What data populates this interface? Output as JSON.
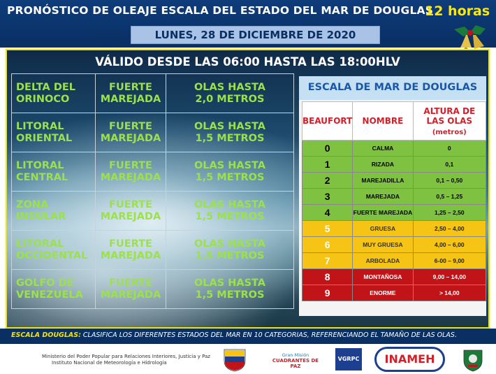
{
  "header": {
    "title": "PRONÓSTICO DE OLEAJE ESCALA DEL ESTADO DEL MAR DE DOUGLAS",
    "hours": "12 horas",
    "date": "LUNES, 28 DE DICIEMBRE DE 2020"
  },
  "validity": "VÁLIDO DESDE LAS 06:00 HASTA LAS 18:00HLV",
  "forecast": [
    {
      "zone_l1": "DELTA DEL",
      "zone_l2": "ORINOCO",
      "cond_l1": "FUERTE",
      "cond_l2": "MAREJADA",
      "waves_l1": "OLAS HASTA",
      "waves_l2": "2,0 METROS"
    },
    {
      "zone_l1": "LITORAL",
      "zone_l2": "ORIENTAL",
      "cond_l1": "FUERTE",
      "cond_l2": "MAREJADA",
      "waves_l1": "OLAS HASTA",
      "waves_l2": "1,5 METROS"
    },
    {
      "zone_l1": "LITORAL",
      "zone_l2": "CENTRAL",
      "cond_l1": "FUERTE",
      "cond_l2": "MAREJADA",
      "waves_l1": "OLAS HASTA",
      "waves_l2": "1,5 METROS"
    },
    {
      "zone_l1": "ZONA",
      "zone_l2": "INSULAR",
      "cond_l1": "FUERTE",
      "cond_l2": "MAREJADA",
      "waves_l1": "OLAS HASTA",
      "waves_l2": "1,5 METROS"
    },
    {
      "zone_l1": "LITORAL",
      "zone_l2": "OCCIDENTAL",
      "cond_l1": "FUERTE",
      "cond_l2": "MAREJADA",
      "waves_l1": "OLAS HASTA",
      "waves_l2": "1,5 METROS"
    },
    {
      "zone_l1": "GOLFO DE",
      "zone_l2": "VENEZUELA",
      "cond_l1": "FUERTE",
      "cond_l2": "MAREJADA",
      "waves_l1": "OLAS HASTA",
      "waves_l2": "1,5 METROS"
    }
  ],
  "scale": {
    "title": "ESCALA DE MAR DE DOUGLAS",
    "headers": {
      "beaufort": "BEAUFORT",
      "name": "NOMBRE",
      "height": "ALTURA DE LAS OLAS",
      "height_unit": "(metros)"
    },
    "rows": [
      {
        "b": "0",
        "name": "CALMA",
        "height": "0",
        "level": "green"
      },
      {
        "b": "1",
        "name": "RIZADA",
        "height": "0,1",
        "level": "green"
      },
      {
        "b": "2",
        "name": "MAREJADILLA",
        "height": "0,1 – 0,50",
        "level": "green"
      },
      {
        "b": "3",
        "name": "MAREJADA",
        "height": "0,5 – 1,25",
        "level": "green"
      },
      {
        "b": "4",
        "name": "FUERTE MAREJADA",
        "height": "1,25 – 2,50",
        "level": "green"
      },
      {
        "b": "5",
        "name": "GRUESA",
        "height": "2,50 – 4,00",
        "level": "yellow"
      },
      {
        "b": "6",
        "name": "MUY GRUESA",
        "height": "4,00 – 6,00",
        "level": "yellow"
      },
      {
        "b": "7",
        "name": "ARBOLADA",
        "height": "6-00 – 9,00",
        "level": "yellow"
      },
      {
        "b": "8",
        "name": "MONTAÑOSA",
        "height": "9,00 – 14,00",
        "level": "red"
      },
      {
        "b": "9",
        "name": "ENORME",
        "height": "> 14,00",
        "level": "red"
      }
    ]
  },
  "footer": {
    "label": "ESCALA DOUGLAS:",
    "text": " CLASIFICA LOS DIFERENTES ESTADOS DEL MAR EN 10 CATEGORIAS, REFERENCIANDO EL TAMAÑO DE LAS OLAS.",
    "ministry_l1": "Ministerio del Poder Popular para Relaciones Interiores, Justicia y Paz",
    "ministry_l2": "Instituto Nacional de Meteorología e Hidrología"
  },
  "logos": {
    "cuadrantes_l1": "Gran Misión",
    "cuadrantes_l2": "CUADRANTES DE PAZ",
    "vgrpc": "VGRPC",
    "inameh": "INAMEH"
  },
  "colors": {
    "green": "#7fc241",
    "yellow": "#f6c414",
    "red": "#c11418",
    "banner": "#0a2f63",
    "accent_yellow": "#f2e400",
    "text_green": "#9be24a"
  }
}
